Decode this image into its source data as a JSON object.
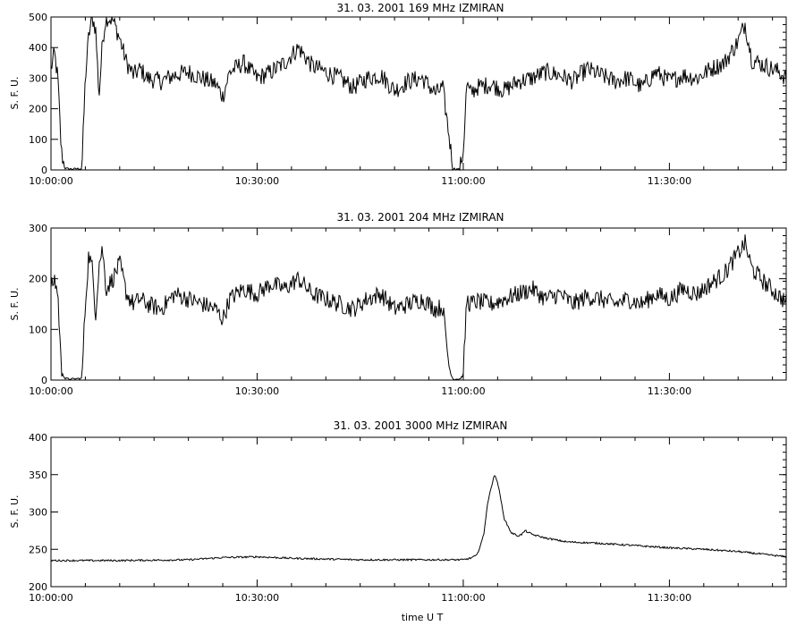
{
  "figure": {
    "xlabel": "time  U T",
    "line_color": "#000000",
    "background_color": "#ffffff"
  },
  "chart_data": [
    {
      "type": "line",
      "title": "31.  03.  2001    169  MHz    IZMIRAN",
      "ylabel": "S. F. U.",
      "xlabel": "",
      "xlim": [
        "10:00:00",
        "11:47:00"
      ],
      "ylim": [
        0,
        500
      ],
      "yticks": [
        0,
        100,
        200,
        300,
        400,
        500
      ],
      "xticks": [
        "10:00:00",
        "10:30:00",
        "11:00:00",
        "11:30:00"
      ],
      "grid": false,
      "series": [
        {
          "x": [
            "10:00:00",
            "10:00:30",
            "10:01:00",
            "10:01:30",
            "10:02:00",
            "10:03:00",
            "10:04:00",
            "10:04:30",
            "10:05:00",
            "10:05:30",
            "10:06:00",
            "10:06:30",
            "10:07:00",
            "10:07:30",
            "10:08:00",
            "10:09:00",
            "10:10:00",
            "10:11:00",
            "10:12:00",
            "10:13:00",
            "10:14:00",
            "10:16:00",
            "10:18:00",
            "10:20:00",
            "10:22:00",
            "10:24:00",
            "10:25:00",
            "10:26:00",
            "10:28:00",
            "10:30:00",
            "10:32:00",
            "10:34:00",
            "10:36:00",
            "10:38:00",
            "10:40:00",
            "10:42:00",
            "10:44:00",
            "10:46:00",
            "10:48:00",
            "10:50:00",
            "10:52:00",
            "10:54:00",
            "10:56:00",
            "10:57:00",
            "10:58:00",
            "10:58:30",
            "10:59:00",
            "10:59:30",
            "11:00:00",
            "11:00:30",
            "11:01:00",
            "11:02:00",
            "11:04:00",
            "11:06:00",
            "11:08:00",
            "11:10:00",
            "11:12:00",
            "11:14:00",
            "11:16:00",
            "11:18:00",
            "11:20:00",
            "11:22:00",
            "11:24:00",
            "11:26:00",
            "11:28:00",
            "11:30:00",
            "11:32:00",
            "11:34:00",
            "11:36:00",
            "11:38:00",
            "11:40:00",
            "11:41:00",
            "11:42:00",
            "11:44:00",
            "11:46:00",
            "11:47:00"
          ],
          "y": [
            330,
            380,
            300,
            60,
            5,
            3,
            4,
            4,
            300,
            440,
            500,
            460,
            240,
            420,
            500,
            490,
            430,
            350,
            310,
            330,
            300,
            290,
            310,
            320,
            300,
            280,
            240,
            320,
            350,
            300,
            320,
            350,
            400,
            340,
            320,
            300,
            270,
            300,
            310,
            260,
            290,
            300,
            250,
            270,
            100,
            5,
            3,
            2,
            60,
            280,
            250,
            270,
            280,
            260,
            290,
            300,
            320,
            310,
            290,
            330,
            310,
            290,
            300,
            270,
            320,
            290,
            310,
            300,
            330,
            350,
            420,
            480,
            360,
            340,
            320,
            300
          ]
        }
      ]
    },
    {
      "type": "line",
      "title": "31.  03.  2001    204  MHz    IZMIRAN",
      "ylabel": "S. F. U.",
      "xlabel": "",
      "xlim": [
        "10:00:00",
        "11:47:00"
      ],
      "ylim": [
        0,
        300
      ],
      "yticks": [
        0,
        100,
        200,
        300
      ],
      "xticks": [
        "10:00:00",
        "10:30:00",
        "11:00:00",
        "11:30:00"
      ],
      "grid": false,
      "series": [
        {
          "x": [
            "10:00:00",
            "10:00:30",
            "10:01:00",
            "10:01:30",
            "10:02:00",
            "10:03:00",
            "10:04:00",
            "10:04:30",
            "10:05:00",
            "10:05:30",
            "10:06:00",
            "10:06:30",
            "10:07:00",
            "10:07:30",
            "10:08:00",
            "10:09:00",
            "10:10:00",
            "10:11:00",
            "10:12:00",
            "10:13:00",
            "10:14:00",
            "10:16:00",
            "10:18:00",
            "10:20:00",
            "10:22:00",
            "10:24:00",
            "10:25:00",
            "10:26:00",
            "10:28:00",
            "10:30:00",
            "10:32:00",
            "10:34:00",
            "10:36:00",
            "10:38:00",
            "10:40:00",
            "10:42:00",
            "10:44:00",
            "10:46:00",
            "10:48:00",
            "10:50:00",
            "10:52:00",
            "10:54:00",
            "10:56:00",
            "10:57:00",
            "10:58:00",
            "10:58:30",
            "10:59:00",
            "10:59:30",
            "11:00:00",
            "11:00:30",
            "11:01:00",
            "11:02:00",
            "11:04:00",
            "11:06:00",
            "11:08:00",
            "11:10:00",
            "11:12:00",
            "11:14:00",
            "11:16:00",
            "11:18:00",
            "11:20:00",
            "11:22:00",
            "11:24:00",
            "11:26:00",
            "11:28:00",
            "11:30:00",
            "11:32:00",
            "11:34:00",
            "11:36:00",
            "11:38:00",
            "11:40:00",
            "11:41:00",
            "11:42:00",
            "11:44:00",
            "11:46:00",
            "11:47:00"
          ],
          "y": [
            180,
            200,
            170,
            20,
            3,
            2,
            3,
            3,
            150,
            250,
            220,
            130,
            230,
            260,
            180,
            200,
            230,
            170,
            150,
            160,
            150,
            140,
            170,
            160,
            150,
            140,
            120,
            160,
            180,
            170,
            190,
            180,
            200,
            170,
            160,
            150,
            140,
            160,
            170,
            140,
            150,
            160,
            140,
            145,
            20,
            2,
            2,
            2,
            10,
            160,
            150,
            155,
            150,
            160,
            170,
            180,
            160,
            170,
            150,
            165,
            160,
            150,
            160,
            150,
            170,
            160,
            180,
            170,
            190,
            210,
            250,
            270,
            220,
            190,
            165,
            155
          ]
        }
      ]
    },
    {
      "type": "line",
      "title": "31.  03.  2001    3000  MHz    IZMIRAN",
      "ylabel": "S. F. U.",
      "xlabel": "time  U T",
      "xlim": [
        "10:00:00",
        "11:47:00"
      ],
      "ylim": [
        200,
        400
      ],
      "yticks": [
        200,
        250,
        300,
        350,
        400
      ],
      "xticks": [
        "10:00:00",
        "10:30:00",
        "11:00:00",
        "11:30:00"
      ],
      "grid": false,
      "series": [
        {
          "x": [
            "10:00:00",
            "10:10:00",
            "10:20:00",
            "10:25:00",
            "10:30:00",
            "10:35:00",
            "10:40:00",
            "10:45:00",
            "10:50:00",
            "10:55:00",
            "10:58:00",
            "11:00:00",
            "11:01:00",
            "11:02:00",
            "11:03:00",
            "11:03:30",
            "11:04:00",
            "11:04:30",
            "11:05:00",
            "11:05:30",
            "11:06:00",
            "11:07:00",
            "11:08:00",
            "11:08:30",
            "11:09:00",
            "11:10:00",
            "11:12:00",
            "11:15:00",
            "11:20:00",
            "11:25:00",
            "11:30:00",
            "11:35:00",
            "11:40:00",
            "11:45:00",
            "11:47:00"
          ],
          "y": [
            235,
            235,
            236,
            239,
            240,
            238,
            237,
            236,
            236,
            236,
            236,
            236,
            238,
            242,
            270,
            310,
            330,
            350,
            340,
            315,
            290,
            272,
            268,
            270,
            275,
            270,
            265,
            260,
            258,
            255,
            252,
            250,
            247,
            242,
            240
          ]
        }
      ]
    }
  ]
}
